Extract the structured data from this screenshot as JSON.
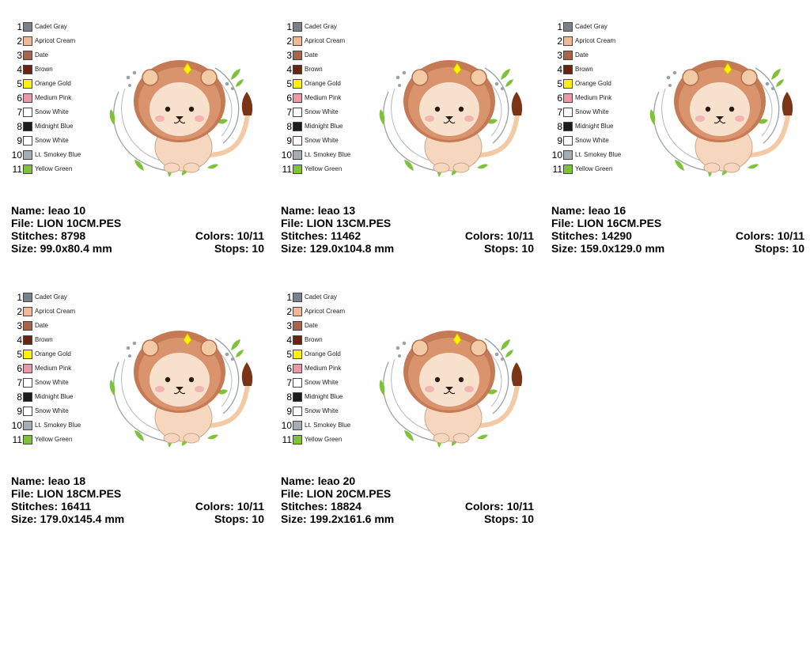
{
  "palette": [
    {
      "num": "1",
      "name": "Cadet Gray",
      "color": "#7b8188"
    },
    {
      "num": "2",
      "name": "Apricot Cream",
      "color": "#f2b896"
    },
    {
      "num": "3",
      "name": "Date",
      "color": "#a8644a"
    },
    {
      "num": "4",
      "name": "Brown",
      "color": "#6b2410"
    },
    {
      "num": "5",
      "name": "Orange Gold",
      "color": "#fff200"
    },
    {
      "num": "6",
      "name": "Medium Pink",
      "color": "#ee98a6"
    },
    {
      "num": "7",
      "name": "Snow White",
      "color": "#ffffff"
    },
    {
      "num": "8",
      "name": "Midnight Blue",
      "color": "#1c1c1c"
    },
    {
      "num": "9",
      "name": "Snow White",
      "color": "#ffffff"
    },
    {
      "num": "10",
      "name": "Lt. Smokey Blue",
      "color": "#a4acb4"
    },
    {
      "num": "11",
      "name": "Yellow Green",
      "color": "#7ec13a"
    }
  ],
  "labels": {
    "name": "Name:",
    "file": "File:",
    "stitches": "Stitches:",
    "size": "Size:",
    "colors": "Colors:",
    "stops": "Stops:"
  },
  "designs": [
    {
      "name": "leao 10",
      "file": "LION 10CM.PES",
      "stitches": "8798",
      "size": "99.0x80.4 mm",
      "colors": "10/11",
      "stops": "10"
    },
    {
      "name": "leao 13",
      "file": "LION 13CM.PES",
      "stitches": "11462",
      "size": "129.0x104.8 mm",
      "colors": "10/11",
      "stops": "10"
    },
    {
      "name": "leao 16",
      "file": "LION 16CM.PES",
      "stitches": "14290",
      "size": "159.0x129.0 mm",
      "colors": "10/11",
      "stops": "10"
    },
    {
      "name": "leao 18",
      "file": "LION 18CM.PES",
      "stitches": "16411",
      "size": "179.0x145.4 mm",
      "colors": "10/11",
      "stops": "10"
    },
    {
      "name": "leao 20",
      "file": "LION 20CM.PES",
      "stitches": "18824",
      "size": "199.2x161.6 mm",
      "colors": "10/11",
      "stops": "10"
    }
  ]
}
